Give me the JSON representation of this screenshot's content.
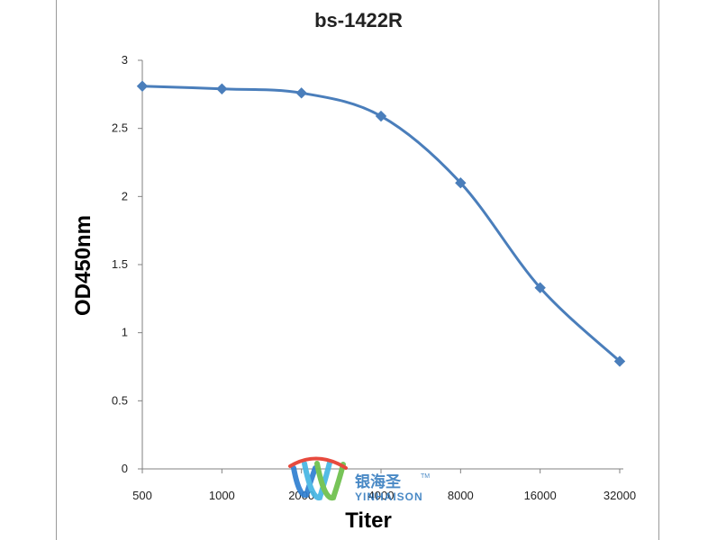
{
  "chart_data": {
    "type": "line",
    "title": "bs-1422R",
    "xlabel": "Titer",
    "ylabel": "OD450nm",
    "categories": [
      "500",
      "1000",
      "2000",
      "4000",
      "8000",
      "16000",
      "32000"
    ],
    "series": [
      {
        "values": [
          2.81,
          2.79,
          2.76,
          2.59,
          2.1,
          1.33,
          0.79
        ],
        "color": "#4a7ebb",
        "marker": "diamond"
      }
    ],
    "ylim": [
      0,
      3
    ],
    "yticks": [
      0,
      0.5,
      1,
      1.5,
      2,
      2.5,
      3
    ],
    "ytick_labels": [
      "0",
      "0.5",
      "1",
      "1.5",
      "2",
      "2.5",
      "3"
    ],
    "grid": false,
    "smooth": true
  },
  "watermark": {
    "text": "银海圣",
    "subtext": "YINHAISON",
    "trademark": "TM",
    "colors": {
      "red": "#e63b2e",
      "blue": "#2f7fd1",
      "cyan": "#45b6e3",
      "green": "#6cc04a",
      "purple": "#8a5db5"
    }
  }
}
